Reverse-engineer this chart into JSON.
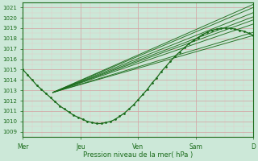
{
  "xlabel": "Pression niveau de la mer( hPa )",
  "ylim": [
    1008.5,
    1021.5
  ],
  "yticks": [
    1009,
    1010,
    1011,
    1012,
    1013,
    1014,
    1015,
    1016,
    1017,
    1018,
    1019,
    1020,
    1021
  ],
  "xtick_labels": [
    "Mer",
    "Jeu",
    "Ven",
    "Sam",
    "D"
  ],
  "xtick_positions": [
    0,
    0.25,
    0.5,
    0.75,
    1.0
  ],
  "background_color": "#cce8d8",
  "grid_color_major": "#d4a0a0",
  "grid_color_minor": "#e8c8c8",
  "line_color": "#1a6b1a",
  "total_steps": 1.0,
  "ensemble_startpoint": 1012.8,
  "straight_line_starts": [
    [
      0.0,
      1015.0
    ],
    [
      0.0,
      1015.0
    ],
    [
      0.0,
      1015.0
    ],
    [
      0.0,
      1015.0
    ],
    [
      0.0,
      1015.0
    ],
    [
      0.0,
      1015.0
    ],
    [
      0.0,
      1015.0
    ],
    [
      0.0,
      1015.0
    ]
  ],
  "observed_x": [
    0.0,
    0.02,
    0.04,
    0.06,
    0.08,
    0.1,
    0.12,
    0.14,
    0.16,
    0.18,
    0.2,
    0.22,
    0.24,
    0.26,
    0.28,
    0.3,
    0.32,
    0.34,
    0.36,
    0.38,
    0.4,
    0.42,
    0.44,
    0.46,
    0.48,
    0.5,
    0.52,
    0.54,
    0.56,
    0.58,
    0.6,
    0.62,
    0.64,
    0.66,
    0.68,
    0.7,
    0.72,
    0.74,
    0.76,
    0.78,
    0.8,
    0.82,
    0.84,
    0.86,
    0.88,
    0.9,
    0.92,
    0.94,
    0.96,
    0.98,
    1.0
  ],
  "observed_y": [
    1015.0,
    1014.5,
    1014.0,
    1013.5,
    1013.1,
    1012.7,
    1012.3,
    1011.9,
    1011.5,
    1011.2,
    1010.9,
    1010.6,
    1010.4,
    1010.2,
    1010.0,
    1009.9,
    1009.8,
    1009.8,
    1009.9,
    1010.0,
    1010.2,
    1010.5,
    1010.8,
    1011.2,
    1011.6,
    1012.1,
    1012.6,
    1013.1,
    1013.7,
    1014.2,
    1014.8,
    1015.3,
    1015.8,
    1016.3,
    1016.7,
    1017.1,
    1017.5,
    1017.8,
    1018.1,
    1018.4,
    1018.6,
    1018.8,
    1018.9,
    1019.0,
    1019.0,
    1019.0,
    1018.9,
    1018.8,
    1018.7,
    1018.5,
    1018.3
  ],
  "fan_lines": [
    {
      "x0": 0.13,
      "y0": 1012.8,
      "x1": 1.0,
      "y1": 1021.3
    },
    {
      "x0": 0.13,
      "y0": 1012.8,
      "x1": 1.0,
      "y1": 1021.0
    },
    {
      "x0": 0.13,
      "y0": 1012.8,
      "x1": 1.0,
      "y1": 1020.5
    },
    {
      "x0": 0.13,
      "y0": 1012.8,
      "x1": 1.0,
      "y1": 1020.1
    },
    {
      "x0": 0.13,
      "y0": 1012.8,
      "x1": 1.0,
      "y1": 1019.8
    },
    {
      "x0": 0.13,
      "y0": 1012.8,
      "x1": 1.0,
      "y1": 1019.4
    },
    {
      "x0": 0.13,
      "y0": 1012.8,
      "x1": 1.0,
      "y1": 1018.6
    },
    {
      "x0": 0.13,
      "y0": 1012.8,
      "x1": 1.0,
      "y1": 1018.3
    }
  ]
}
